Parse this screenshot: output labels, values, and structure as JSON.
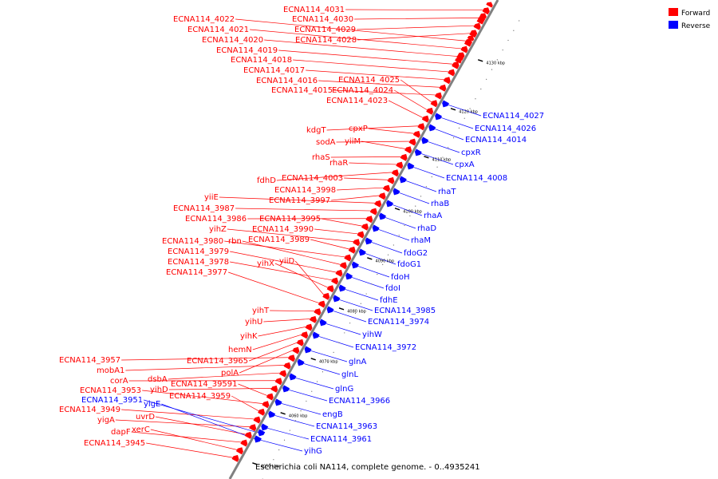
{
  "caption": "Escherichia coli NA114, complete genome. - 0..4935241",
  "legend": [
    {
      "label": "Forward",
      "color": "#ff0000"
    },
    {
      "label": "Reverse",
      "color": "#0000ff"
    }
  ],
  "colors": {
    "forward": "#ff0000",
    "reverse": "#0000ff",
    "axis": "#808080"
  },
  "ticks": [
    "4050 kbp",
    "4060 kbp",
    "4070 kbp",
    "4080 kbp",
    "4090 kbp",
    "4100 kbp",
    "4110 kbp",
    "4120 kbp",
    "4130 kbp"
  ],
  "forward_genes": [
    "ECNA114_4031",
    "ECNA114_4030",
    "ECNA114_4029",
    "ECNA114_4028",
    "ECNA114_4022",
    "ECNA114_4021",
    "ECNA114_4020",
    "ECNA114_4019",
    "ECNA114_4018",
    "ECNA114_4017",
    "ECNA114_4016",
    "ECNA114_4015",
    "ECNA114_4025",
    "ECNA114_4024",
    "ECNA114_4023",
    "kdgT",
    "cpxP",
    "sodA",
    "yiiM",
    "rhaS",
    "rhaR",
    "fdhD",
    "ECNA114_4003",
    "ECNA114_3998",
    "ECNA114_3997",
    "yiiE",
    "ECNA114_3987",
    "ECNA114_3986",
    "ECNA114_3995",
    "ECNA114_3990",
    "yihZ",
    "ECNA114_3989",
    "ECNA114_3980",
    "rbn",
    "ECNA114_3979",
    "ECNA114_3978",
    "yihX",
    "yiiD",
    "ECNA114_3977",
    "yihT",
    "yihU",
    "yihK",
    "hemN",
    "ECNA114_3965",
    "polA",
    "ECNA114_3957",
    "mobA1",
    "dsbA",
    "corA",
    "yihD",
    "ECNA114_39591",
    "ECNA114_3953",
    "ECNA114_3959",
    "ECNA114_3949",
    "yigA",
    "uvrD",
    "dapF",
    "xerC",
    "ECNA114_3945"
  ],
  "reverse_genes": [
    "ECNA114_4027",
    "ECNA114_4026",
    "ECNA114_4014",
    "cpxR",
    "cpxA",
    "ECNA114_4008",
    "rhaT",
    "rhaB",
    "rhaA",
    "rhaD",
    "rhaM",
    "fdoG2",
    "fdoG1",
    "fdoH",
    "fdoI",
    "fdhE",
    "ECNA114_3985",
    "ECNA114_3974",
    "yihW",
    "ECNA114_3972",
    "glnA",
    "glnL",
    "glnG",
    "ECNA114_3966",
    "engB",
    "ECNA114_3963",
    "ECNA114_3961",
    "yihG",
    "ECNA114_3951",
    "yigE"
  ]
}
